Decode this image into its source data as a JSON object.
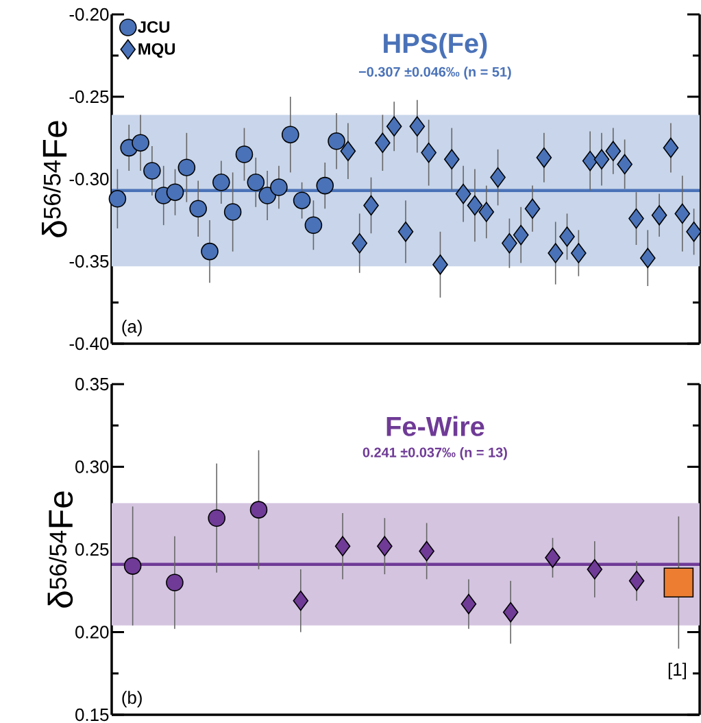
{
  "chart_data": [
    {
      "type": "scatter",
      "title": "HPS(Fe)",
      "subtitle": "−0.307 ±0.046‰ (n = 51)",
      "ylabel": "δ$^{56/54}$Fe",
      "annotations": [
        "(a)"
      ],
      "categories": [
        null,
        null,
        null,
        null,
        null,
        null,
        null,
        null,
        null,
        null,
        null,
        null,
        null,
        null,
        null,
        null,
        null,
        null,
        null,
        null,
        null,
        null,
        null,
        null,
        null,
        null,
        null,
        null,
        null,
        null,
        null,
        null,
        null,
        null,
        null,
        null,
        null,
        null,
        null,
        null,
        null,
        null,
        null,
        null,
        null,
        null,
        null,
        null,
        null,
        null,
        null
      ],
      "series": [
        {
          "name": "JCU",
          "color": "#4a72b8",
          "marker": "circle",
          "values": [
            -0.312,
            -0.281,
            -0.278,
            -0.295,
            -0.31,
            -0.308,
            -0.293,
            -0.318,
            -0.344,
            -0.302,
            -0.32,
            -0.285,
            -0.302,
            -0.31,
            -0.305,
            -0.273,
            -0.313,
            -0.328,
            -0.304,
            -0.277,
            null,
            null,
            null,
            null,
            null,
            null,
            null,
            null,
            null,
            null,
            null,
            null,
            null,
            null,
            null,
            null,
            null,
            null,
            null,
            null,
            null,
            null,
            null,
            null,
            null,
            null,
            null,
            null,
            null,
            null,
            null
          ],
          "errors": [
            0.018,
            0.014,
            0.017,
            0.015,
            0.018,
            0.014,
            0.021,
            0.017,
            0.019,
            0.013,
            0.024,
            0.016,
            0.015,
            0.015,
            0.013,
            0.023,
            0.011,
            0.015,
            0.014,
            0.017,
            null,
            null,
            null,
            null,
            null,
            null,
            null,
            null,
            null,
            null,
            null,
            null,
            null,
            null,
            null,
            null,
            null,
            null,
            null,
            null,
            null,
            null,
            null,
            null,
            null,
            null,
            null,
            null,
            null,
            null,
            null
          ]
        },
        {
          "name": "MQU",
          "color": "#4a72b8",
          "marker": "diamond",
          "values": [
            null,
            null,
            null,
            null,
            null,
            null,
            null,
            null,
            null,
            null,
            null,
            null,
            null,
            null,
            null,
            null,
            null,
            null,
            null,
            null,
            -0.283,
            -0.339,
            -0.316,
            -0.278,
            -0.268,
            -0.332,
            -0.268,
            -0.284,
            -0.352,
            -0.288,
            -0.309,
            -0.316,
            -0.32,
            -0.299,
            -0.339,
            -0.334,
            -0.318,
            -0.287,
            -0.345,
            -0.335,
            -0.345,
            -0.289,
            -0.288,
            -0.283,
            -0.291,
            -0.324,
            -0.348,
            -0.322,
            -0.281,
            -0.321,
            -0.332
          ],
          "errors": [
            null,
            null,
            null,
            null,
            null,
            null,
            null,
            null,
            null,
            null,
            null,
            null,
            null,
            null,
            null,
            null,
            null,
            null,
            null,
            null,
            0.017,
            0.018,
            0.017,
            0.017,
            0.015,
            0.019,
            0.016,
            0.02,
            0.02,
            0.019,
            0.017,
            0.022,
            0.016,
            0.017,
            0.015,
            0.017,
            0.014,
            0.015,
            0.019,
            0.014,
            0.014,
            0.018,
            0.016,
            0.014,
            0.015,
            0.016,
            0.017,
            0.013,
            0.015,
            0.023,
            0.014
          ]
        }
      ],
      "ylim": [
        -0.4,
        -0.2
      ],
      "yticks": [
        {
          "value": -0.4,
          "label": "-0.40"
        },
        {
          "value": -0.375,
          "label": null
        },
        {
          "value": -0.35,
          "label": "-0.35"
        },
        {
          "value": -0.325,
          "label": null
        },
        {
          "value": -0.3,
          "label": "-0.30"
        },
        {
          "value": -0.275,
          "label": null
        },
        {
          "value": -0.25,
          "label": "-0.25"
        },
        {
          "value": -0.225,
          "label": null
        },
        {
          "value": -0.2,
          "label": "-0.20"
        }
      ],
      "ref_lines": [
        {
          "axis": "y",
          "value": -0.307,
          "color": "#4a72b8"
        }
      ],
      "bands": [
        {
          "axis": "y",
          "from": -0.353,
          "to": -0.261,
          "color": "#c8d5ea"
        }
      ],
      "legend": "top left"
    },
    {
      "type": "scatter",
      "title": "Fe-Wire",
      "subtitle": "0.241 ±0.037‰ (n = 13)",
      "ylabel": "δ$^{56/54}$Fe",
      "annotations": [
        "(b)",
        "[1]"
      ],
      "categories": [
        null,
        null,
        null,
        null,
        null,
        null,
        null,
        null,
        null,
        null,
        null,
        null,
        null,
        null
      ],
      "series": [
        {
          "color": "#6f3b96",
          "marker": "circle",
          "values": [
            0.24,
            0.23,
            0.269,
            0.274,
            null,
            null,
            null,
            null,
            null,
            null,
            null,
            null,
            null,
            null
          ],
          "errors": [
            0.036,
            0.028,
            0.033,
            0.036,
            null,
            null,
            null,
            null,
            null,
            null,
            null,
            null,
            null,
            null
          ]
        },
        {
          "color": "#6f3b96",
          "marker": "diamond",
          "values": [
            null,
            null,
            null,
            null,
            0.219,
            0.252,
            0.252,
            0.249,
            0.217,
            0.212,
            0.245,
            0.238,
            0.231,
            null
          ],
          "errors": [
            null,
            null,
            null,
            null,
            0.019,
            0.02,
            0.017,
            0.017,
            0.015,
            0.019,
            0.012,
            0.017,
            0.012,
            null
          ]
        },
        {
          "color": "#ed7d31",
          "marker": "square",
          "values": [
            null,
            null,
            null,
            null,
            null,
            null,
            null,
            null,
            null,
            null,
            null,
            null,
            null,
            0.23
          ],
          "errors": [
            null,
            null,
            null,
            null,
            null,
            null,
            null,
            null,
            null,
            null,
            null,
            null,
            null,
            0.04
          ]
        }
      ],
      "ylim": [
        0.15,
        0.35
      ],
      "yticks": [
        {
          "value": 0.15,
          "label": "0.15"
        },
        {
          "value": 0.175,
          "label": null
        },
        {
          "value": 0.2,
          "label": "0.20"
        },
        {
          "value": 0.225,
          "label": null
        },
        {
          "value": 0.25,
          "label": "0.25"
        },
        {
          "value": 0.275,
          "label": null
        },
        {
          "value": 0.3,
          "label": "0.30"
        },
        {
          "value": 0.325,
          "label": null
        },
        {
          "value": 0.35,
          "label": "0.35"
        }
      ],
      "ref_lines": [
        {
          "axis": "y",
          "value": 0.241,
          "color": "#6f3b96"
        }
      ],
      "bands": [
        {
          "axis": "y",
          "from": 0.204,
          "to": 0.278,
          "color": "#d4c4e0"
        }
      ]
    }
  ]
}
